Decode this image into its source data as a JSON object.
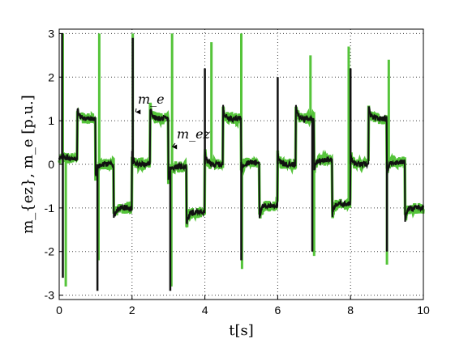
{
  "chart_data": {
    "type": "line",
    "xlabel": "t[s]",
    "ylabel": "m_{ez}, m_e [p.u.]",
    "xlim": [
      0,
      10
    ],
    "ylim": [
      -3.1,
      3.1
    ],
    "grid": true,
    "x_ticks": [
      "0",
      "2",
      "4",
      "6",
      "8",
      "10"
    ],
    "y_ticks": [
      "-3",
      "-2",
      "-1",
      "0",
      "1",
      "2",
      "3"
    ],
    "annotations": [
      {
        "text": "m_e",
        "target_x": 2.1,
        "target_y": 1.2
      },
      {
        "text": "m_ez",
        "target_x": 3.1,
        "target_y": 0.4
      }
    ],
    "series": [
      {
        "color": "#55c43a",
        "levels": [
          0.15,
          1.05,
          0.0,
          -1.0,
          0.0,
          1.05,
          -0.05,
          -1.1,
          0.0,
          1.05,
          0.05,
          -0.95,
          0.0,
          1.05,
          0.1,
          -0.9,
          0.0,
          1.05,
          0.05,
          -1.0
        ],
        "spikes": [
          [
            0.1,
            3.0
          ],
          [
            0.18,
            -2.8
          ],
          [
            1.1,
            3.0
          ],
          [
            1.08,
            -2.2
          ],
          [
            2.02,
            3.0
          ],
          [
            3.1,
            3.0
          ],
          [
            3.08,
            -2.8
          ],
          [
            4.18,
            2.8
          ],
          [
            5.0,
            3.0
          ],
          [
            5.02,
            -2.4
          ],
          [
            6.9,
            2.5
          ],
          [
            7.0,
            -2.1
          ],
          [
            7.95,
            2.7
          ],
          [
            9.05,
            2.4
          ],
          [
            9.0,
            -2.3
          ]
        ],
        "noise": 0.13
      },
      {
        "color": "#111111",
        "levels": [
          0.15,
          1.05,
          0.0,
          -1.0,
          0.0,
          1.05,
          -0.05,
          -1.1,
          0.0,
          1.05,
          0.05,
          -0.95,
          0.0,
          1.05,
          0.1,
          -0.9,
          0.0,
          1.05,
          0.05,
          -1.0
        ],
        "spikes": [
          [
            0.08,
            3.0
          ],
          [
            0.1,
            -2.6
          ],
          [
            1.05,
            -2.9
          ],
          [
            2.02,
            2.9
          ],
          [
            3.05,
            -2.9
          ],
          [
            4.0,
            2.2
          ],
          [
            5.0,
            -2.2
          ],
          [
            6.0,
            2.0
          ],
          [
            6.95,
            -2.0
          ],
          [
            8.0,
            2.2
          ],
          [
            9.0,
            -2.0
          ]
        ],
        "noise": 0.06
      }
    ]
  }
}
